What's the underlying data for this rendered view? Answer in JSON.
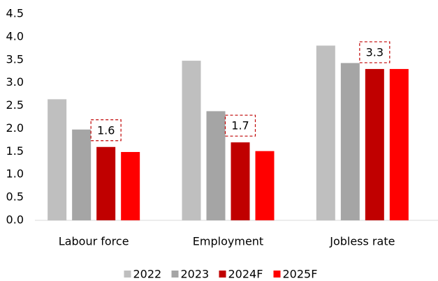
{
  "chart_data": {
    "type": "bar",
    "categories": [
      "Labour force",
      "Employment",
      "Jobless rate"
    ],
    "series": [
      {
        "name": "2022",
        "color": "#bfbfbf",
        "values": [
          2.64,
          3.48,
          3.81
        ]
      },
      {
        "name": "2023",
        "color": "#a5a5a5",
        "values": [
          1.98,
          2.38,
          3.43
        ]
      },
      {
        "name": "2024F",
        "color": "#c00000",
        "values": [
          1.6,
          1.7,
          3.3
        ],
        "value_labels": [
          "1.6",
          "1.7",
          "3.3"
        ]
      },
      {
        "name": "2025F",
        "color": "#ff0000",
        "values": [
          1.49,
          1.51,
          3.3
        ]
      }
    ],
    "ylim": [
      0,
      4.5
    ],
    "yticks": [
      {
        "value": 0,
        "label": "0.0"
      },
      0.5,
      {
        "value": 1,
        "label": "1.0"
      },
      1.5,
      {
        "value": 2,
        "label": "2.0"
      },
      2.5,
      {
        "value": 3,
        "label": "3.0"
      },
      3.5,
      {
        "value": 4,
        "label": "4.0"
      },
      4.5
    ],
    "grid": false,
    "legend": "bottom"
  }
}
